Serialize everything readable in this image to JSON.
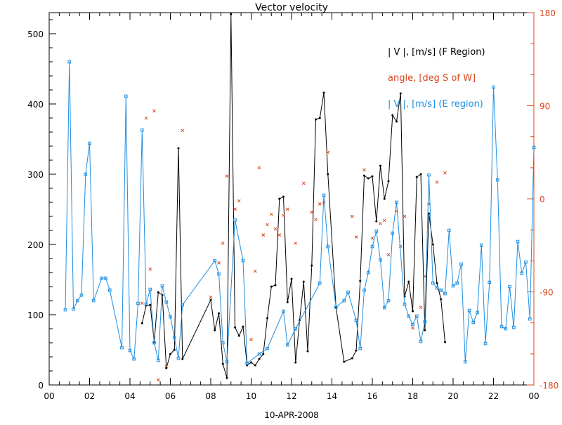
{
  "chart_data": {
    "type": "line",
    "title": "Vector velocity",
    "xlabel": "10-APR-2008",
    "x_ticks": [
      "00",
      "02",
      "04",
      "06",
      "08",
      "10",
      "12",
      "14",
      "16",
      "18",
      "20",
      "22",
      "00"
    ],
    "x_range": [
      0,
      24
    ],
    "y_left": {
      "range": [
        0,
        530
      ],
      "ticks": [
        "0",
        "100",
        "200",
        "300",
        "400",
        "500"
      ]
    },
    "y_right": {
      "range": [
        -180,
        180
      ],
      "ticks": [
        "-180",
        "-90",
        "0",
        "90",
        "180"
      ],
      "color": "#d9481e"
    },
    "grid": false,
    "legend_placement": "top-right",
    "series": [
      {
        "name": "| V |, [m/s] (F Region)",
        "color": "#000000",
        "axis": "left",
        "style": "line-markers",
        "x": [
          4.6,
          4.8,
          5.0,
          5.2,
          5.4,
          5.6,
          5.8,
          6.0,
          6.2,
          6.4,
          6.6,
          8.0,
          8.2,
          8.4,
          8.6,
          8.8,
          9.0,
          9.2,
          9.4,
          9.6,
          9.8,
          10.0,
          10.2,
          10.4,
          10.6,
          10.8,
          11.0,
          11.2,
          11.4,
          11.6,
          11.8,
          12.0,
          12.2,
          12.4,
          12.6,
          12.8,
          13.0,
          13.2,
          13.4,
          13.6,
          13.8,
          14.2,
          14.6,
          15.0,
          15.2,
          15.4,
          15.6,
          15.8,
          16.0,
          16.2,
          16.4,
          16.6,
          16.8,
          17.0,
          17.2,
          17.4,
          17.6,
          17.8,
          18.0,
          18.2,
          18.4,
          18.6,
          18.8,
          19.0,
          19.2,
          19.4,
          19.6
        ],
        "y": [
          88,
          113,
          114,
          61,
          132,
          128,
          24,
          44,
          50,
          337,
          37,
          121,
          78,
          102,
          30,
          10,
          528,
          82,
          70,
          83,
          28,
          32,
          28,
          37,
          44,
          95,
          140,
          142,
          265,
          268,
          118,
          151,
          32,
          92,
          147,
          48,
          170,
          378,
          380,
          416,
          300,
          110,
          33,
          38,
          49,
          148,
          298,
          294,
          297,
          233,
          312,
          265,
          290,
          384,
          375,
          415,
          126,
          147,
          105,
          296,
          300,
          78,
          244,
          200,
          145,
          122,
          61
        ]
      },
      {
        "name": "angle, [deg S of W]",
        "color": "#d9481e",
        "axis": "right",
        "style": "markers",
        "x": [
          4.6,
          4.8,
          5.0,
          5.2,
          5.4,
          5.8,
          6.6,
          8.0,
          8.4,
          8.6,
          8.8,
          9.2,
          9.4,
          10.0,
          10.2,
          10.4,
          10.6,
          10.8,
          11.0,
          11.2,
          11.4,
          11.6,
          11.8,
          12.2,
          12.6,
          13.0,
          13.2,
          13.4,
          13.6,
          13.8,
          15.0,
          15.2,
          15.6,
          16.0,
          16.4,
          16.6,
          16.8,
          17.2,
          17.4,
          17.6,
          18.0,
          18.4,
          18.6,
          18.8,
          19.2,
          19.6
        ],
        "y": [
          -101,
          78,
          -68,
          85,
          -175,
          -162,
          66,
          -95,
          -62,
          -43,
          22,
          -10,
          -2,
          -136,
          -70,
          30,
          -35,
          -25,
          -15,
          -29,
          -35,
          -16,
          -10,
          -43,
          15,
          -13,
          -20,
          -5,
          -4,
          45,
          -17,
          -37,
          28,
          -38,
          -24,
          -21,
          -54,
          -12,
          -46,
          -17,
          -125,
          -105,
          -75,
          -5,
          16,
          25
        ]
      },
      {
        "name": "| V |, [m/s] (E region)",
        "color": "#1f8ee0",
        "axis": "left",
        "style": "line-markers",
        "x": [
          0.8,
          1.0,
          1.2,
          1.4,
          1.6,
          1.8,
          2.0,
          2.2,
          2.6,
          2.8,
          3.0,
          3.6,
          3.8,
          4.0,
          4.2,
          4.4,
          4.6,
          4.8,
          5.0,
          5.2,
          5.4,
          5.6,
          5.8,
          6.0,
          6.2,
          6.4,
          6.6,
          8.2,
          8.4,
          8.6,
          8.8,
          9.2,
          9.6,
          9.8,
          10.4,
          10.8,
          11.6,
          11.8,
          12.2,
          13.4,
          13.6,
          13.8,
          14.2,
          14.6,
          14.8,
          15.2,
          15.4,
          15.6,
          15.8,
          16.0,
          16.2,
          16.4,
          16.6,
          16.8,
          17.0,
          17.2,
          17.6,
          17.8,
          18.0,
          18.2,
          18.4,
          18.6,
          18.8,
          19.0,
          19.2,
          19.4,
          19.6,
          19.8,
          20.0,
          20.2,
          20.4,
          20.6,
          20.8,
          21.0,
          21.2,
          21.4,
          21.6,
          21.8,
          22.0,
          22.2,
          22.4,
          22.6,
          22.8,
          23.0,
          23.2,
          23.4,
          23.6,
          23.8,
          24.0
        ],
        "y": [
          107,
          460,
          108,
          120,
          128,
          300,
          344,
          120,
          152,
          152,
          135,
          53,
          411,
          49,
          37,
          116,
          363,
          115,
          136,
          60,
          35,
          141,
          118,
          97,
          67,
          38,
          114,
          177,
          158,
          60,
          33,
          235,
          177,
          31,
          44,
          52,
          105,
          57,
          80,
          145,
          270,
          197,
          111,
          120,
          132,
          92,
          52,
          135,
          160,
          197,
          219,
          178,
          110,
          120,
          216,
          260,
          115,
          98,
          86,
          98,
          62,
          90,
          299,
          145,
          138,
          135,
          130,
          220,
          141,
          145,
          172,
          33,
          106,
          89,
          103,
          199,
          59,
          146,
          424,
          292,
          83,
          80,
          140,
          82,
          204,
          159,
          175,
          94,
          338
        ]
      }
    ]
  }
}
